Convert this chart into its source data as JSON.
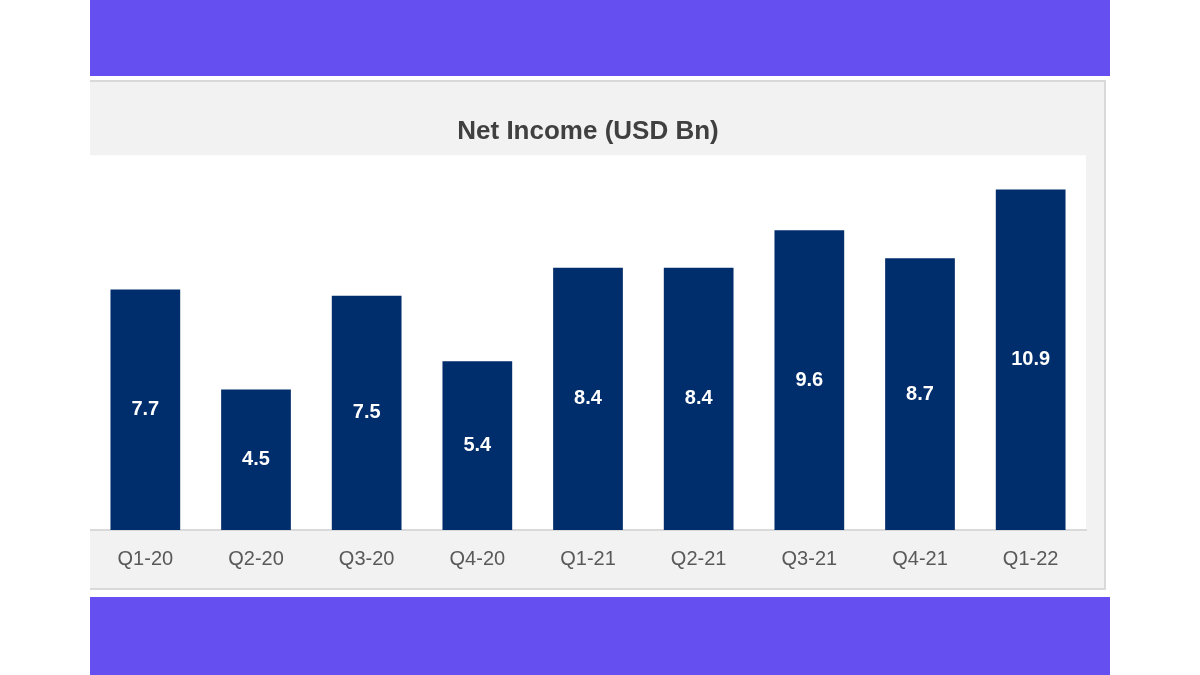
{
  "chart_data": {
    "type": "bar",
    "title": "Net Income (USD Bn)",
    "categories": [
      "Q1-20",
      "Q2-20",
      "Q3-20",
      "Q4-20",
      "Q1-21",
      "Q2-21",
      "Q3-21",
      "Q4-21",
      "Q1-22"
    ],
    "values": [
      7.7,
      4.5,
      7.5,
      5.4,
      8.4,
      8.4,
      9.6,
      8.7,
      10.9
    ],
    "color": "#002d6b",
    "data_labels": true
  }
}
